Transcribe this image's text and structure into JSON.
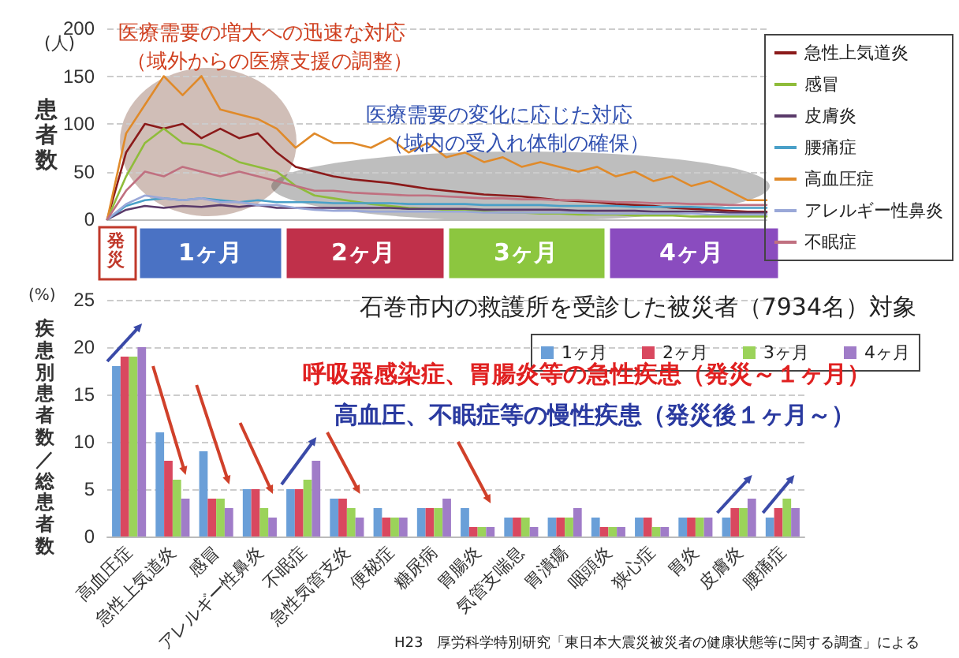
{
  "chart_data": [
    {
      "type": "line",
      "ylabel": "患者数",
      "annotations": [
        "(人)",
        "医療需要の増大への迅速な対応",
        "（域外からの医療支援の調整）",
        "医療需要の変化に応じた対応",
        "（域内の受入れ体制の確保）",
        "発災",
        "1ヶ月",
        "2ヶ月",
        "3ヶ月",
        "4ヶ月"
      ],
      "categories": [
        null,
        null,
        null,
        null,
        null,
        null,
        null,
        null,
        null,
        null,
        null,
        null,
        null,
        null,
        null,
        null,
        null,
        null,
        null,
        null,
        null,
        null,
        null,
        null,
        null,
        null,
        null,
        null,
        null,
        null,
        null,
        null,
        null,
        null,
        null,
        null
      ],
      "ylim": [
        0,
        200
      ],
      "yticks": [
        0,
        50,
        100,
        150,
        200
      ],
      "tick_labels": "y",
      "grid": "y",
      "legend": "right",
      "marker": "none",
      "line_style": "solid",
      "series": [
        {
          "name": "急性上気道炎",
          "color": "#8b1a1a",
          "values": [
            0,
            70,
            100,
            95,
            100,
            85,
            95,
            85,
            90,
            70,
            55,
            50,
            45,
            42,
            40,
            38,
            35,
            32,
            30,
            28,
            26,
            25,
            24,
            22,
            20,
            19,
            18,
            16,
            15,
            14,
            12,
            11,
            10,
            9,
            8,
            8
          ]
        },
        {
          "name": "感冒",
          "color": "#8fbc3a",
          "values": [
            0,
            45,
            80,
            95,
            80,
            78,
            70,
            60,
            55,
            50,
            35,
            25,
            22,
            19,
            16,
            14,
            12,
            11,
            10,
            9,
            8,
            7,
            7,
            6,
            6,
            5,
            5,
            5,
            4,
            4,
            4,
            3,
            3,
            3,
            3,
            3
          ]
        },
        {
          "name": "皮膚炎",
          "color": "#5a3a6a",
          "values": [
            0,
            10,
            14,
            12,
            14,
            13,
            15,
            13,
            15,
            12,
            12,
            12,
            12,
            12,
            12,
            12,
            11,
            11,
            11,
            11,
            10,
            10,
            10,
            10,
            10,
            9,
            9,
            9,
            9,
            8,
            8,
            8,
            8,
            7,
            7,
            7
          ]
        },
        {
          "name": "腰痛症",
          "color": "#4aa0c8",
          "values": [
            0,
            14,
            20,
            22,
            20,
            22,
            20,
            18,
            20,
            18,
            18,
            18,
            17,
            17,
            17,
            17,
            16,
            16,
            16,
            16,
            15,
            15,
            15,
            15,
            14,
            14,
            14,
            14,
            13,
            13,
            13,
            13,
            12,
            12,
            12,
            12
          ]
        },
        {
          "name": "高血圧症",
          "color": "#e08a2a",
          "values": [
            0,
            90,
            120,
            150,
            130,
            150,
            115,
            110,
            105,
            95,
            75,
            90,
            80,
            80,
            75,
            85,
            70,
            80,
            65,
            70,
            60,
            65,
            55,
            60,
            55,
            50,
            55,
            45,
            50,
            40,
            45,
            35,
            40,
            30,
            20,
            20
          ]
        },
        {
          "name": "アレルギー性鼻炎",
          "color": "#9aa8d8",
          "values": [
            0,
            16,
            25,
            22,
            20,
            22,
            18,
            18,
            15,
            15,
            12,
            10,
            9,
            9,
            8,
            8,
            8,
            8,
            8,
            8,
            7,
            7,
            7,
            7,
            7,
            7,
            6,
            6,
            6,
            6,
            6,
            6,
            5,
            5,
            5,
            5
          ]
        },
        {
          "name": "不眠症",
          "color": "#c07080",
          "values": [
            0,
            30,
            50,
            45,
            55,
            50,
            45,
            50,
            45,
            40,
            35,
            30,
            30,
            28,
            27,
            26,
            25,
            25,
            24,
            23,
            22,
            22,
            21,
            21,
            20,
            20,
            19,
            18,
            18,
            17,
            17,
            16,
            16,
            15,
            15,
            15
          ]
        }
      ]
    },
    {
      "type": "bar",
      "title": "石巻市内の救護所を受診した被災者（7934名）対象",
      "ylabel": "疾患別患者数／総患者数",
      "annotations": [
        "(%)",
        "呼吸器感染症、胃腸炎等の急性疾患（発災～１ヶ月）",
        "高血圧、不眠症等の慢性疾患（発災後１ヶ月～）",
        "H23　厚労科学特別研究「東日本大震災被災者の健康状態等に関する調査」による"
      ],
      "categories": [
        "高血圧症",
        "急性上気道炎",
        "感冒",
        "アレルギー性鼻炎",
        "不眠症",
        "急性気管支炎",
        "便秘症",
        "糖尿病",
        "胃腸炎",
        "気管支喘息",
        "胃潰瘍",
        "咽頭炎",
        "狭心症",
        "胃炎",
        "皮膚炎",
        "腰痛症"
      ],
      "ylim": [
        0,
        25
      ],
      "yticks": [
        0,
        5,
        10,
        15,
        20,
        25
      ],
      "grid": "y",
      "legend": "top right",
      "series": [
        {
          "name": "1ヶ月",
          "color": "#6a9fd8",
          "values": [
            18,
            11,
            9,
            5,
            5,
            4,
            3,
            3,
            3,
            2,
            2,
            2,
            2,
            2,
            2,
            2
          ]
        },
        {
          "name": "2ヶ月",
          "color": "#d9485f",
          "values": [
            19,
            8,
            4,
            5,
            5,
            4,
            2,
            3,
            1,
            2,
            2,
            1,
            2,
            2,
            3,
            3
          ]
        },
        {
          "name": "3ヶ月",
          "color": "#9bd35a",
          "values": [
            19,
            6,
            4,
            3,
            6,
            3,
            2,
            3,
            1,
            2,
            2,
            1,
            1,
            2,
            3,
            4
          ]
        },
        {
          "name": "4ヶ月",
          "color": "#a07cc8",
          "values": [
            20,
            4,
            3,
            2,
            8,
            2,
            2,
            4,
            1,
            1,
            3,
            1,
            1,
            2,
            4,
            3
          ]
        }
      ]
    }
  ]
}
